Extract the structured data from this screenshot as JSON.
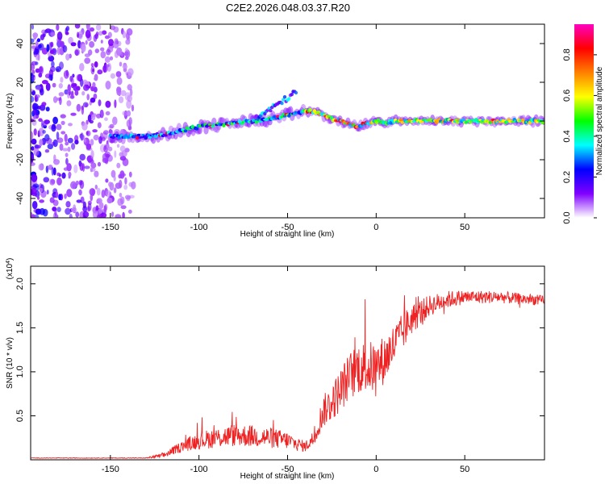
{
  "title": "C2E2.2026.048.03.37.R20",
  "chart_data": [
    {
      "type": "heatmap",
      "name": "spectrogram",
      "xlabel": "Height of straight line (km)",
      "ylabel": "Frequency (Hz)",
      "xlim": [
        -195,
        95
      ],
      "ylim": [
        -50,
        50
      ],
      "xticks": [
        -150,
        -100,
        -50,
        0,
        50
      ],
      "yticks": [
        -40,
        -20,
        0,
        20,
        40
      ],
      "ridge": {
        "x": [
          -150,
          -140,
          -130,
          -120,
          -110,
          -100,
          -90,
          -80,
          -70,
          -60,
          -50,
          -45,
          -40,
          -35,
          -30,
          -25,
          -20,
          -15,
          -10,
          -5,
          0,
          5,
          10,
          20,
          30,
          40,
          50,
          60,
          70,
          80,
          95
        ],
        "y": [
          -8,
          -8,
          -8,
          -7,
          -5,
          -3,
          -2,
          -1,
          0,
          1,
          3,
          4,
          5,
          5,
          3,
          1,
          0,
          -2,
          -3,
          -1,
          0,
          -1,
          0,
          0,
          0,
          0,
          0,
          0,
          0,
          0,
          0
        ]
      },
      "colorbar": {
        "label": "Normalized spectral amplitude",
        "range": [
          0,
          0.95
        ],
        "ticks": [
          0.0,
          0.2,
          0.4,
          0.6,
          0.8
        ],
        "tick_labels": [
          "0.0",
          "0.2",
          "0.4",
          "0.6",
          "0.8"
        ],
        "colors": [
          "#ffffff",
          "#8000ff",
          "#0000ff",
          "#00ffff",
          "#00ff00",
          "#ffff00",
          "#ff8000",
          "#ff0000",
          "#ff00c0"
        ]
      }
    },
    {
      "type": "line",
      "name": "snr",
      "xlabel": "Height of straight line (km)",
      "ylabel": "SNR (10 * v/v)",
      "multiplier_label": "(x10",
      "multiplier_exp": "4",
      "xlim": [
        -195,
        95
      ],
      "ylim": [
        0,
        2.2
      ],
      "xticks": [
        -150,
        -100,
        -50,
        0,
        50
      ],
      "yticks": [
        0.5,
        1.0,
        1.5,
        2.0
      ],
      "ytick_labels": [
        "0.5",
        "1.0",
        "1.5",
        "2.0"
      ],
      "color": "#ee2222",
      "envelope": {
        "x": [
          -195,
          -130,
          -120,
          -110,
          -100,
          -90,
          -80,
          -70,
          -60,
          -50,
          -45,
          -40,
          -35,
          -30,
          -25,
          -20,
          -15,
          -10,
          -5,
          0,
          5,
          10,
          15,
          20,
          30,
          40,
          50,
          60,
          70,
          80,
          90,
          95
        ],
        "y": [
          0.02,
          0.02,
          0.05,
          0.15,
          0.22,
          0.25,
          0.28,
          0.27,
          0.25,
          0.22,
          0.18,
          0.15,
          0.25,
          0.55,
          0.65,
          0.8,
          0.95,
          1.05,
          1.05,
          1.05,
          1.15,
          1.3,
          1.45,
          1.6,
          1.75,
          1.82,
          1.85,
          1.85,
          1.85,
          1.83,
          1.82,
          1.8
        ]
      },
      "noise": {
        "x": [
          -195,
          -130,
          -110,
          -100,
          -80,
          -60,
          -50,
          -40,
          -35,
          -30,
          -20,
          -10,
          0,
          10,
          20,
          30,
          50,
          70,
          95
        ],
        "amp": [
          0.003,
          0.004,
          0.06,
          0.1,
          0.13,
          0.12,
          0.1,
          0.06,
          0.1,
          0.18,
          0.25,
          0.3,
          0.3,
          0.25,
          0.18,
          0.12,
          0.08,
          0.07,
          0.06
        ]
      }
    }
  ]
}
